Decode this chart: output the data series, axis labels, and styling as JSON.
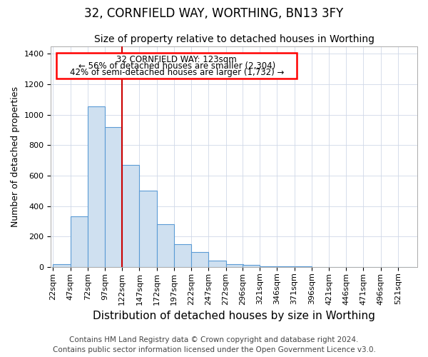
{
  "title1": "32, CORNFIELD WAY, WORTHING, BN13 3FY",
  "title2": "Size of property relative to detached houses in Worthing",
  "xlabel": "Distribution of detached houses by size in Worthing",
  "ylabel": "Number of detached properties",
  "footer": "Contains HM Land Registry data © Crown copyright and database right 2024.\nContains public sector information licensed under the Open Government Licence v3.0.",
  "annotation_title": "32 CORNFIELD WAY: 123sqm",
  "annotation_line1": "← 56% of detached houses are smaller (2,304)",
  "annotation_line2": "42% of semi-detached houses are larger (1,732) →",
  "bar_color": "#cfe0f0",
  "bar_edge_color": "#5b9bd5",
  "vline_color": "#cc0000",
  "vline_x": 122,
  "categories": [
    "22sqm",
    "47sqm",
    "72sqm",
    "97sqm",
    "122sqm",
    "147sqm",
    "172sqm",
    "197sqm",
    "222sqm",
    "247sqm",
    "272sqm",
    "296sqm",
    "321sqm",
    "346sqm",
    "371sqm",
    "396sqm",
    "421sqm",
    "446sqm",
    "471sqm",
    "496sqm",
    "521sqm"
  ],
  "bin_starts": [
    22,
    47,
    72,
    97,
    122,
    147,
    172,
    197,
    222,
    247,
    272,
    296,
    321,
    346,
    371,
    396,
    421,
    446,
    471,
    496,
    521
  ],
  "bin_width": 25,
  "values": [
    18,
    330,
    1055,
    920,
    670,
    500,
    280,
    150,
    100,
    40,
    20,
    15,
    5,
    3,
    2,
    1,
    0,
    0,
    0,
    0,
    0
  ],
  "ylim": [
    0,
    1450
  ],
  "yticks": [
    0,
    200,
    400,
    600,
    800,
    1000,
    1200,
    1400
  ],
  "background_color": "#ffffff",
  "grid_color": "#d0d8e8",
  "title1_fontsize": 12,
  "title2_fontsize": 10,
  "ylabel_fontsize": 9,
  "xlabel_fontsize": 11,
  "tick_fontsize": 8,
  "footer_fontsize": 7.5,
  "annot_fontsize": 8.5
}
